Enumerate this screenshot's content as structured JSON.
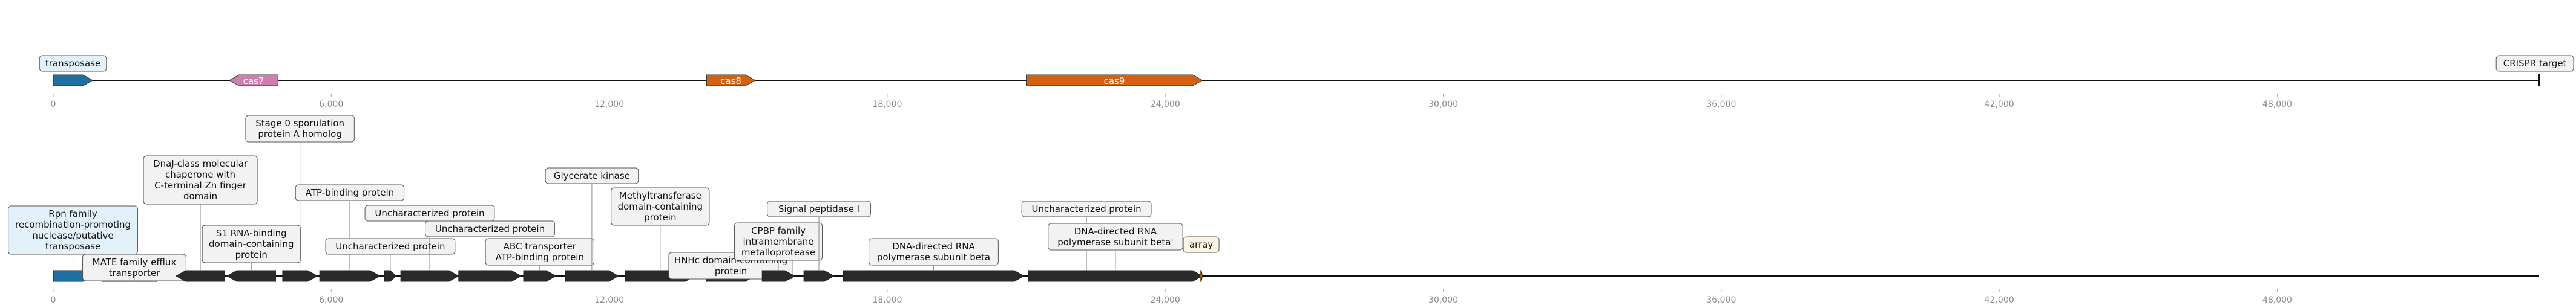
{
  "colors": {
    "dark_gene": "#2a2a2a",
    "transposase": "#1f6fa5",
    "cas7": "#cd7fae",
    "cas8": "#d2620f",
    "cas9": "#d2620f",
    "crispr": "#a06a1a",
    "box_default_fill": "#f2f2f2",
    "box_blue_fill": "#e3f2fa",
    "box_array_fill": "#fdf3e3",
    "axis": "#111111",
    "tick_text": "#8a8a8a"
  },
  "axis_ticks": [
    "0",
    "6,000",
    "12,000",
    "18,000",
    "24,000",
    "30,000",
    "36,000",
    "42,000",
    "48,000"
  ],
  "axis_tick_values": [
    0,
    6000,
    12000,
    18000,
    24000,
    30000,
    36000,
    42000,
    48000
  ],
  "axis_max_bp": 53650,
  "top_track": {
    "genes": [
      {
        "name": "transposase",
        "start": 0,
        "end": 850,
        "strand": "+",
        "color": "transposase",
        "label": "",
        "box": "transposase",
        "box_style": "blue"
      },
      {
        "name": "cas7",
        "start": 3800,
        "end": 4850,
        "strand": "-",
        "color": "cas7",
        "label": "cas7",
        "box": "",
        "box_style": ""
      },
      {
        "name": "cas8",
        "start": 14100,
        "end": 15150,
        "strand": "+",
        "color": "cas8",
        "label": "cas8",
        "box": "",
        "box_style": ""
      },
      {
        "name": "cas9",
        "start": 21000,
        "end": 24800,
        "strand": "+",
        "color": "cas9",
        "label": "cas9",
        "box": "",
        "box_style": ""
      }
    ],
    "target_label": "CRISPR target",
    "target_bp": 53650
  },
  "bottom_track": {
    "genes": [
      {
        "start": 0,
        "end": 850,
        "strand": "+",
        "color": "transposase",
        "box": "Rpn family recombination-promoting nuclease/putative transposase",
        "box_style": "blue"
      },
      {
        "start": 1050,
        "end": 2450,
        "strand": "+",
        "color": "dark_gene",
        "box": "MATE family efflux transporter",
        "box_style": "default"
      },
      {
        "start": 2650,
        "end": 3700,
        "strand": "-",
        "color": "dark_gene",
        "box": "DnaJ-class molecular chaperone with C-terminal Zn finger domain",
        "box_style": "default"
      },
      {
        "start": 3750,
        "end": 4800,
        "strand": "-",
        "color": "dark_gene",
        "box": "S1 RNA-binding domain-containing protein",
        "box_style": "default"
      },
      {
        "start": 4950,
        "end": 5700,
        "strand": "+",
        "color": "dark_gene",
        "box": "Stage 0 sporulation protein A homolog",
        "box_style": "default"
      },
      {
        "start": 5750,
        "end": 7050,
        "strand": "+",
        "color": "dark_gene",
        "box": "ATP-binding protein",
        "box_style": "default"
      },
      {
        "start": 7150,
        "end": 7400,
        "strand": "+",
        "color": "dark_gene",
        "box": "Uncharacterized protein",
        "box_style": "default"
      },
      {
        "start": 7500,
        "end": 8750,
        "strand": "+",
        "color": "dark_gene",
        "box": "Uncharacterized protein",
        "box_style": "default"
      },
      {
        "start": 8750,
        "end": 10100,
        "strand": "+",
        "color": "dark_gene",
        "box": "Uncharacterized protein",
        "box_style": "default"
      },
      {
        "start": 10150,
        "end": 10850,
        "strand": "+",
        "color": "dark_gene",
        "box": "ABC transporter ATP-binding protein",
        "box_style": "default"
      },
      {
        "start": 11050,
        "end": 12200,
        "strand": "+",
        "color": "dark_gene",
        "box": "Glycerate kinase",
        "box_style": "default"
      },
      {
        "start": 12350,
        "end": 13850,
        "strand": "+",
        "color": "dark_gene",
        "box": "Methyltransferase domain-containing protein",
        "box_style": "default"
      },
      {
        "start": 14100,
        "end": 15150,
        "strand": "+",
        "color": "dark_gene",
        "box": "HNHc domain-containing protein",
        "box_style": "default"
      },
      {
        "start": 15300,
        "end": 16000,
        "strand": "+",
        "color": "dark_gene",
        "box": "CPBP family intramembrane metalloprotease",
        "box_style": "default"
      },
      {
        "start": 16200,
        "end": 16850,
        "strand": "+",
        "color": "dark_gene",
        "box": "Signal peptidase I",
        "box_style": "default"
      },
      {
        "start": 17050,
        "end": 20950,
        "strand": "+",
        "color": "dark_gene",
        "box": "DNA-directed RNA polymerase subunit beta",
        "box_style": "default"
      },
      {
        "start": 22150,
        "end": 22450,
        "strand": "-",
        "color": "dark_gene",
        "box": "Uncharacterized protein",
        "box_style": "default"
      },
      {
        "start": 21050,
        "end": 24800,
        "strand": "+",
        "color": "dark_gene",
        "box": "DNA-directed RNA polymerase subunit beta'",
        "box_style": "default"
      },
      {
        "start": 24750,
        "end": 24800,
        "strand": "+",
        "color": "crispr",
        "box": "array",
        "box_style": "array"
      }
    ]
  }
}
